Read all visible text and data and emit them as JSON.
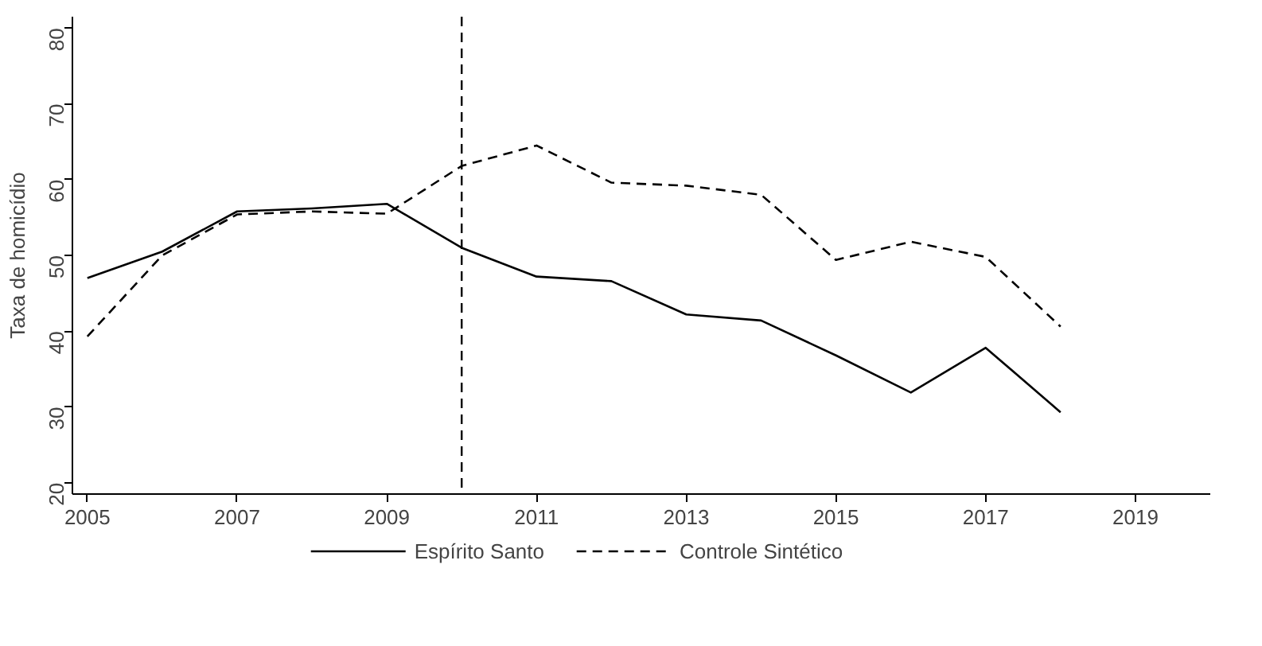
{
  "chart_data": {
    "type": "line",
    "ylabel": "Taxa de homicídio",
    "x": [
      2005,
      2006,
      2007,
      2008,
      2009,
      2010,
      2011,
      2012,
      2013,
      2014,
      2015,
      2016,
      2017,
      2018
    ],
    "series": [
      {
        "name": "Espírito Santo",
        "color": "#000000",
        "line_style": "solid",
        "values": [
          47.0,
          50.5,
          55.8,
          56.2,
          56.8,
          51.0,
          47.2,
          46.6,
          42.2,
          41.4,
          36.8,
          31.9,
          37.8,
          29.3
        ]
      },
      {
        "name": "Controle Sintético",
        "color": "#000000",
        "line_style": "dashed",
        "values": [
          39.3,
          50.0,
          55.4,
          55.8,
          55.5,
          61.8,
          64.5,
          59.6,
          59.2,
          58.0,
          49.4,
          51.8,
          49.8,
          40.6
        ]
      }
    ],
    "xlim": [
      2004.8,
      2020
    ],
    "xticks": [
      2005,
      2007,
      2009,
      2011,
      2013,
      2015,
      2017,
      2019
    ],
    "ylim": [
      18.5,
      81.5
    ],
    "yticks": [
      20,
      30,
      40,
      50,
      60,
      70,
      80
    ],
    "ref_lines": [
      {
        "axis": "x",
        "value": 2010,
        "line_style": "dashed",
        "color": "#000000"
      }
    ],
    "grid": false,
    "legend": "bottom"
  }
}
